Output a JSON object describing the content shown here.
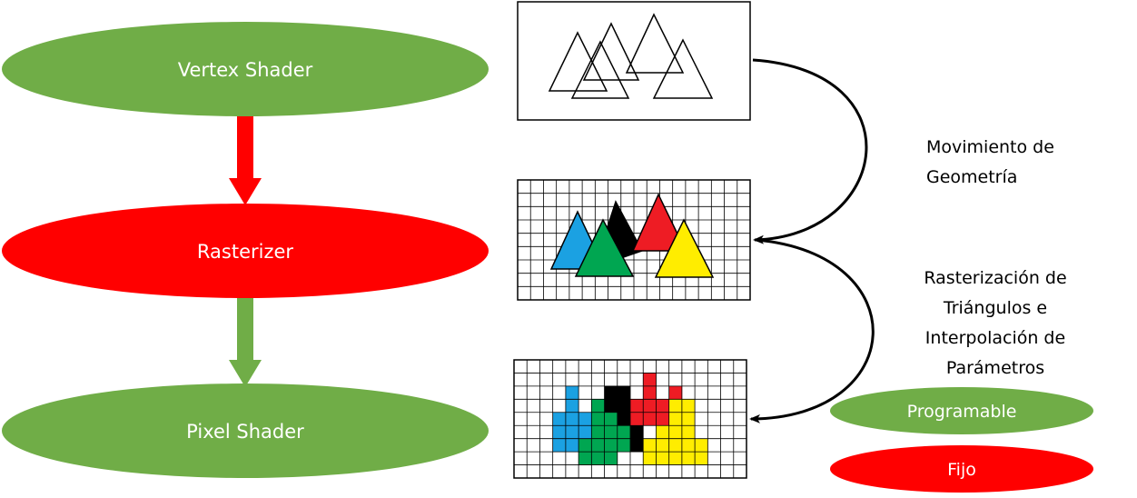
{
  "stages": [
    {
      "label": "Vertex Shader",
      "kind": "programmable"
    },
    {
      "label": "Rasterizer",
      "kind": "fixed"
    },
    {
      "label": "Pixel Shader",
      "kind": "programmable"
    }
  ],
  "annotations": {
    "geometry": [
      "Movimiento de",
      "Geometría"
    ],
    "raster": [
      "Rasterización de",
      "Triángulos e",
      "Interpolación de",
      "Parámetros"
    ]
  },
  "legend": {
    "programmable": "Programable",
    "fixed": "Fijo"
  },
  "colors": {
    "programmable": "#70ad47",
    "fixed": "#ff0000",
    "arrow_fixed": "#ff0000",
    "arrow_programmable": "#70ad47",
    "tri_blue": "#1ba1e2",
    "tri_green": "#00a651",
    "tri_black": "#000000",
    "tri_red": "#ee1c24",
    "tri_yellow": "#ffed00"
  }
}
